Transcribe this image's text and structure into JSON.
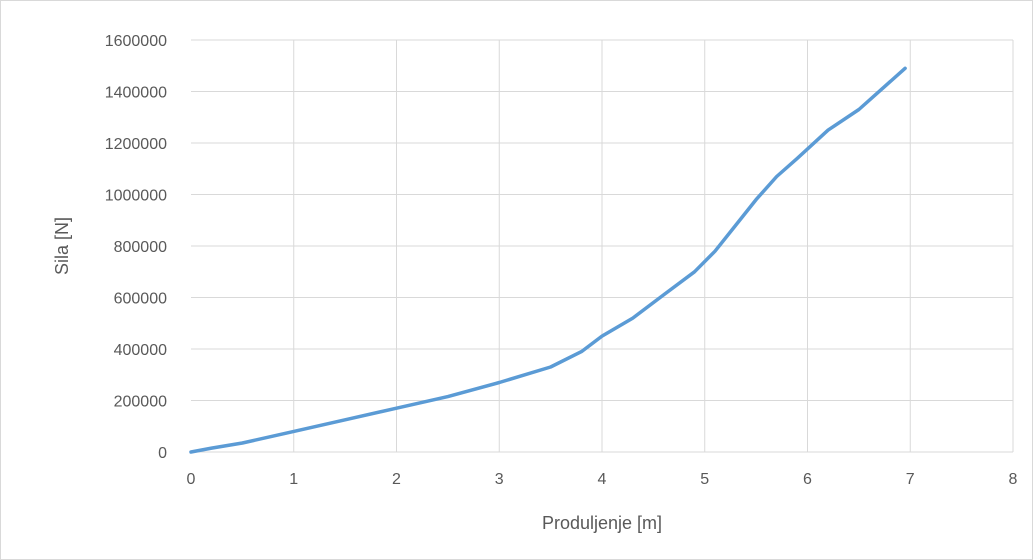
{
  "chart_data": {
    "type": "line",
    "title": "",
    "xlabel": "Produljenje [m]",
    "ylabel": "Sila [N]",
    "xlim": [
      0,
      8
    ],
    "ylim": [
      0,
      1600000
    ],
    "x_ticks": [
      "0",
      "1",
      "2",
      "3",
      "4",
      "5",
      "6",
      "7",
      "8"
    ],
    "y_ticks": [
      "0",
      "200000",
      "400000",
      "600000",
      "800000",
      "1000000",
      "1200000",
      "1400000",
      "1600000"
    ],
    "grid": true,
    "legend": "none",
    "series": [
      {
        "color": "#5b9bd5",
        "points": [
          [
            0,
            0
          ],
          [
            0.2,
            15000
          ],
          [
            0.5,
            35000
          ],
          [
            1.0,
            80000
          ],
          [
            1.5,
            125000
          ],
          [
            2.0,
            170000
          ],
          [
            2.5,
            215000
          ],
          [
            3.0,
            270000
          ],
          [
            3.5,
            330000
          ],
          [
            3.8,
            390000
          ],
          [
            4.0,
            450000
          ],
          [
            4.3,
            520000
          ],
          [
            4.6,
            610000
          ],
          [
            4.9,
            700000
          ],
          [
            5.1,
            780000
          ],
          [
            5.3,
            880000
          ],
          [
            5.5,
            980000
          ],
          [
            5.7,
            1070000
          ],
          [
            5.9,
            1140000
          ],
          [
            6.2,
            1250000
          ],
          [
            6.5,
            1330000
          ],
          [
            6.95,
            1490000
          ]
        ]
      }
    ]
  }
}
